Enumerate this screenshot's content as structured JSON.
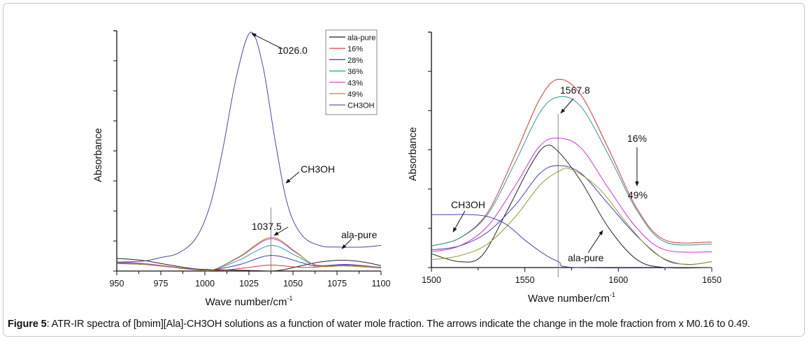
{
  "caption": {
    "label": "Figure 5",
    "text": ": ATR-IR spectra of [bmim][Ala]-CH3OH solutions as a function of water mole fraction. The arrows indicate the change in the mole fraction from x M0.16 to 0.49."
  },
  "chart_data": [
    {
      "type": "line",
      "title": "",
      "xlabel": "Wave number/cm",
      "xlabel_sup": "-1",
      "ylabel": "Absorbance",
      "xlim": [
        950,
        1100
      ],
      "xticks": [
        950,
        975,
        1000,
        1025,
        1050,
        1075,
        1100
      ],
      "ylim": [
        0,
        8
      ],
      "y_tick_labels_shown": false,
      "grid": false,
      "legend": {
        "placement": "top-right",
        "entries": [
          "ala-pure",
          "16%",
          "28%",
          "36%",
          "43%",
          "49%",
          "CH3OH"
        ]
      },
      "annotations": [
        {
          "text": "1026.0",
          "x": 1026.0,
          "kind": "peak-arrow"
        },
        {
          "text": "1037.5",
          "x": 1037.5,
          "kind": "peak-arrow"
        },
        {
          "text": "CH3OH",
          "kind": "series-arrow"
        },
        {
          "text": "ala-pure",
          "kind": "series-arrow"
        }
      ],
      "vline_x": 1037.5,
      "series": [
        {
          "name": "ala-pure",
          "color": "#222222",
          "points": [
            [
              950,
              0.42
            ],
            [
              965,
              0.35
            ],
            [
              980,
              0.2
            ],
            [
              995,
              0.07
            ],
            [
              1010,
              0.04
            ],
            [
              1025,
              0.02
            ],
            [
              1037.5,
              0.0
            ],
            [
              1045,
              0.05
            ],
            [
              1055,
              0.18
            ],
            [
              1065,
              0.3
            ],
            [
              1078,
              0.36
            ],
            [
              1090,
              0.3
            ],
            [
              1100,
              0.18
            ]
          ]
        },
        {
          "name": "16%",
          "color": "#e03030",
          "points": [
            [
              950,
              0.3
            ],
            [
              965,
              0.25
            ],
            [
              980,
              0.15
            ],
            [
              995,
              0.05
            ],
            [
              1010,
              0.03
            ],
            [
              1025,
              0.12
            ],
            [
              1037.5,
              0.2
            ],
            [
              1050,
              0.14
            ],
            [
              1060,
              0.12
            ],
            [
              1075,
              0.18
            ],
            [
              1090,
              0.14
            ],
            [
              1100,
              0.1
            ]
          ]
        },
        {
          "name": "28%",
          "color": "#3a3ac8",
          "points": [
            [
              950,
              0.25
            ],
            [
              965,
              0.22
            ],
            [
              980,
              0.14
            ],
            [
              995,
              0.06
            ],
            [
              1005,
              0.05
            ],
            [
              1020,
              0.22
            ],
            [
              1037.5,
              0.52
            ],
            [
              1055,
              0.28
            ],
            [
              1063,
              0.17
            ],
            [
              1080,
              0.22
            ],
            [
              1100,
              0.12
            ]
          ]
        },
        {
          "name": "36%",
          "color": "#2a9a9a",
          "points": [
            [
              950,
              0.28
            ],
            [
              965,
              0.24
            ],
            [
              980,
              0.15
            ],
            [
              995,
              0.05
            ],
            [
              1005,
              0.05
            ],
            [
              1020,
              0.38
            ],
            [
              1037.5,
              0.85
            ],
            [
              1052,
              0.5
            ],
            [
              1063,
              0.2
            ],
            [
              1080,
              0.2
            ],
            [
              1100,
              0.13
            ]
          ]
        },
        {
          "name": "43%",
          "color": "#d030d0",
          "points": [
            [
              950,
              0.3
            ],
            [
              965,
              0.25
            ],
            [
              980,
              0.15
            ],
            [
              995,
              0.05
            ],
            [
              1005,
              0.05
            ],
            [
              1020,
              0.48
            ],
            [
              1037.5,
              1.08
            ],
            [
              1052,
              0.6
            ],
            [
              1063,
              0.2
            ],
            [
              1080,
              0.2
            ],
            [
              1100,
              0.12
            ]
          ]
        },
        {
          "name": "49%",
          "color": "#9a9a20",
          "points": [
            [
              950,
              0.26
            ],
            [
              965,
              0.22
            ],
            [
              980,
              0.13
            ],
            [
              995,
              0.04
            ],
            [
              1005,
              0.05
            ],
            [
              1020,
              0.5
            ],
            [
              1037.5,
              1.12
            ],
            [
              1052,
              0.62
            ],
            [
              1063,
              0.18
            ],
            [
              1080,
              0.17
            ],
            [
              1100,
              0.12
            ]
          ]
        },
        {
          "name": "CH3OH",
          "color": "#4848a8",
          "points": [
            [
              950,
              0.3
            ],
            [
              965,
              0.33
            ],
            [
              975,
              0.45
            ],
            [
              985,
              0.6
            ],
            [
              995,
              1.1
            ],
            [
              1003,
              2.2
            ],
            [
              1010,
              4.0
            ],
            [
              1018,
              6.5
            ],
            [
              1026,
              7.95
            ],
            [
              1033,
              6.8
            ],
            [
              1040,
              4.3
            ],
            [
              1047,
              2.2
            ],
            [
              1055,
              1.2
            ],
            [
              1065,
              0.85
            ],
            [
              1075,
              0.8
            ],
            [
              1090,
              0.8
            ],
            [
              1100,
              0.85
            ]
          ]
        }
      ]
    },
    {
      "type": "line",
      "title": "",
      "xlabel": "Wave number/cm",
      "xlabel_sup": "-1",
      "ylabel": "Absorbance",
      "xlim": [
        1500,
        1650
      ],
      "xticks": [
        1500,
        1550,
        1600,
        1650
      ],
      "ylim": [
        0,
        6
      ],
      "y_tick_labels_shown": false,
      "grid": false,
      "annotations": [
        {
          "text": "1567.8",
          "x": 1567.8,
          "kind": "peak-arrow"
        },
        {
          "text": "16%",
          "kind": "trend-start"
        },
        {
          "text": "49%",
          "kind": "trend-end"
        },
        {
          "text": "CH3OH",
          "kind": "series-arrow"
        },
        {
          "text": "ala-pure",
          "kind": "series-arrow"
        }
      ],
      "vline_x": 1567.8,
      "series": [
        {
          "name": "ala-pure",
          "color": "#222222",
          "points": [
            [
              1500,
              0.35
            ],
            [
              1515,
              0.15
            ],
            [
              1527,
              0.3
            ],
            [
              1540,
              1.4
            ],
            [
              1553,
              2.6
            ],
            [
              1561,
              3.1
            ],
            [
              1568,
              2.95
            ],
            [
              1580,
              2.2
            ],
            [
              1595,
              1.0
            ],
            [
              1610,
              0.2
            ],
            [
              1625,
              0.0
            ],
            [
              1650,
              0.0
            ]
          ]
        },
        {
          "name": "16%",
          "color": "#e03030",
          "points": [
            [
              1500,
              0.55
            ],
            [
              1515,
              0.75
            ],
            [
              1530,
              1.4
            ],
            [
              1545,
              2.9
            ],
            [
              1558,
              4.3
            ],
            [
              1568,
              4.8
            ],
            [
              1580,
              4.4
            ],
            [
              1595,
              3.0
            ],
            [
              1610,
              1.5
            ],
            [
              1625,
              0.7
            ],
            [
              1650,
              0.65
            ]
          ]
        },
        {
          "name": "28%",
          "color": "#3a3ac8",
          "points": [
            [
              1500,
              0.45
            ],
            [
              1515,
              0.55
            ],
            [
              1530,
              0.9
            ],
            [
              1545,
              1.6
            ],
            [
              1558,
              2.4
            ],
            [
              1568,
              2.6
            ],
            [
              1580,
              2.4
            ],
            [
              1595,
              1.6
            ],
            [
              1610,
              0.8
            ],
            [
              1625,
              0.2
            ],
            [
              1638,
              0.08
            ],
            [
              1650,
              0.15
            ]
          ]
        },
        {
          "name": "36%",
          "color": "#2a9a9a",
          "points": [
            [
              1500,
              0.55
            ],
            [
              1515,
              0.75
            ],
            [
              1530,
              1.35
            ],
            [
              1545,
              2.7
            ],
            [
              1558,
              3.95
            ],
            [
              1568,
              4.35
            ],
            [
              1580,
              4.1
            ],
            [
              1595,
              2.85
            ],
            [
              1610,
              1.45
            ],
            [
              1625,
              0.65
            ],
            [
              1650,
              0.6
            ]
          ]
        },
        {
          "name": "43%",
          "color": "#d030d0",
          "points": [
            [
              1500,
              0.4
            ],
            [
              1515,
              0.55
            ],
            [
              1530,
              1.05
            ],
            [
              1545,
              2.1
            ],
            [
              1558,
              3.1
            ],
            [
              1568,
              3.3
            ],
            [
              1580,
              3.05
            ],
            [
              1595,
              2.0
            ],
            [
              1610,
              1.0
            ],
            [
              1625,
              0.45
            ],
            [
              1650,
              0.4
            ]
          ]
        },
        {
          "name": "49%",
          "color": "#9a9a20",
          "points": [
            [
              1500,
              0.2
            ],
            [
              1515,
              0.3
            ],
            [
              1530,
              0.6
            ],
            [
              1545,
              1.3
            ],
            [
              1558,
              2.1
            ],
            [
              1568,
              2.45
            ],
            [
              1575,
              2.5
            ],
            [
              1590,
              2.0
            ],
            [
              1605,
              1.1
            ],
            [
              1620,
              0.35
            ],
            [
              1635,
              0.08
            ],
            [
              1650,
              0.15
            ]
          ]
        },
        {
          "name": "CH3OH",
          "color": "#4848a8",
          "points": [
            [
              1500,
              1.35
            ],
            [
              1510,
              1.35
            ],
            [
              1520,
              1.35
            ],
            [
              1530,
              1.3
            ],
            [
              1540,
              1.1
            ],
            [
              1550,
              0.7
            ],
            [
              1560,
              0.35
            ],
            [
              1568,
              0.15
            ],
            [
              1578,
              0.0
            ],
            [
              1650,
              0.0
            ]
          ]
        }
      ]
    }
  ]
}
